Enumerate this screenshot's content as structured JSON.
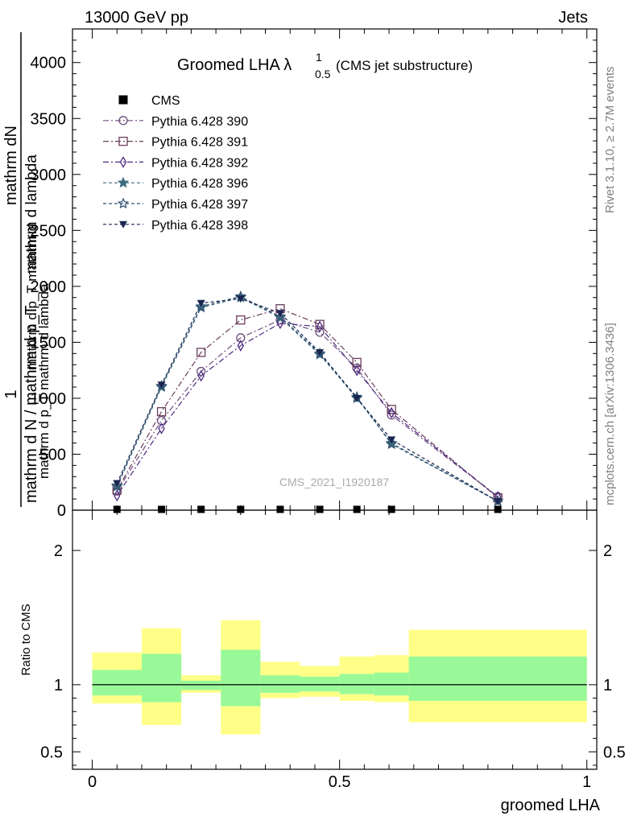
{
  "header": {
    "beam": "13000 GeV pp",
    "process": "Jets"
  },
  "title": {
    "main": "Groomed LHA λ",
    "superscript": "1",
    "subscript": "0.5",
    "suffix": "(CMS jet substructure)"
  },
  "side_labels": {
    "rivet": "Rivet 3.1.10, ≥ 2.7M events",
    "mcplots": "mcplots.cern.ch [arXiv:1306.3436]"
  },
  "watermark": "CMS_2021_I1920187",
  "main_ylabel": {
    "one": "1",
    "den": "mathrm d N / mathrm d p_T",
    "lbl1": "mathrm d lambda",
    "lbl2": "mathrm d p_T mathrm d lambda",
    "lbl3": "mathrm dN",
    "lbl4": "mathrm d p_T mathrm d"
  },
  "ratio_ylabel": "Ratio to CMS",
  "xlabel": "groomed LHA",
  "colors": {
    "s390": "#6e4f7f",
    "s391": "#6a3d5c",
    "s392": "#4b2a80",
    "s396": "#3f6d80",
    "s397": "#2f4f6f",
    "s398": "#1a2550",
    "band_inner": "#99f999",
    "band_outer": "#ffff88"
  },
  "chart_data": [
    {
      "type": "line",
      "panel": "main",
      "xlim": [
        -0.04,
        1.02
      ],
      "ylim": [
        0,
        4300
      ],
      "yticks": [
        0,
        500,
        1000,
        1500,
        2000,
        2500,
        3000,
        3500,
        4000
      ],
      "yticklabels": [
        "0",
        "500",
        "1000",
        "1500",
        "2000",
        "2500",
        "3000",
        "3500",
        "4000"
      ],
      "legend_position": "top-left",
      "x": [
        0.05,
        0.14,
        0.22,
        0.3,
        0.38,
        0.46,
        0.535,
        0.605,
        0.82
      ],
      "series": [
        {
          "name": "CMS",
          "marker": "square",
          "values": [
            0,
            0,
            0,
            0,
            0,
            0,
            0,
            0,
            0
          ]
        },
        {
          "name": "Pythia 6.428 390",
          "marker": "circle",
          "values": [
            170,
            800,
            1240,
            1540,
            1700,
            1590,
            1270,
            850,
            120
          ]
        },
        {
          "name": "Pythia 6.428 391",
          "marker": "square-open",
          "values": [
            180,
            880,
            1410,
            1700,
            1800,
            1660,
            1320,
            900,
            110
          ]
        },
        {
          "name": "Pythia 6.428 392",
          "marker": "diamond",
          "values": [
            130,
            730,
            1200,
            1470,
            1670,
            1640,
            1250,
            870,
            120
          ]
        },
        {
          "name": "Pythia 6.428 396",
          "marker": "star-filled",
          "values": [
            210,
            1100,
            1810,
            1900,
            1720,
            1390,
            1000,
            600,
            80
          ]
        },
        {
          "name": "Pythia 6.428 397",
          "marker": "star-open",
          "values": [
            220,
            1110,
            1820,
            1910,
            1730,
            1400,
            1010,
            590,
            80
          ]
        },
        {
          "name": "Pythia 6.428 398",
          "marker": "triangle-down",
          "values": [
            240,
            1120,
            1850,
            1890,
            1760,
            1410,
            1000,
            630,
            80
          ]
        }
      ]
    },
    {
      "type": "area",
      "panel": "ratio",
      "xlim": [
        -0.04,
        1.02
      ],
      "ylim": [
        0.37,
        2.3
      ],
      "yticks": [
        0.5,
        1,
        2
      ],
      "yticklabels": [
        "0.5",
        "1",
        "2"
      ],
      "xticks": [
        0,
        0.5,
        1
      ],
      "xticklabels": [
        "0",
        "0.5",
        "1"
      ],
      "bins": [
        {
          "x": [
            0.0,
            0.1
          ],
          "inner": [
            0.92,
            1.11
          ],
          "outer": [
            0.86,
            1.24
          ]
        },
        {
          "x": [
            0.1,
            0.18
          ],
          "inner": [
            0.87,
            1.23
          ],
          "outer": [
            0.7,
            1.42
          ]
        },
        {
          "x": [
            0.18,
            0.26
          ],
          "inner": [
            0.96,
            1.03
          ],
          "outer": [
            0.94,
            1.07
          ]
        },
        {
          "x": [
            0.26,
            0.34
          ],
          "inner": [
            0.84,
            1.26
          ],
          "outer": [
            0.63,
            1.48
          ]
        },
        {
          "x": [
            0.34,
            0.42
          ],
          "inner": [
            0.94,
            1.07
          ],
          "outer": [
            0.9,
            1.17
          ]
        },
        {
          "x": [
            0.42,
            0.5
          ],
          "inner": [
            0.95,
            1.06
          ],
          "outer": [
            0.91,
            1.14
          ]
        },
        {
          "x": [
            0.5,
            0.57
          ],
          "inner": [
            0.93,
            1.08
          ],
          "outer": [
            0.88,
            1.21
          ]
        },
        {
          "x": [
            0.57,
            0.64
          ],
          "inner": [
            0.92,
            1.09
          ],
          "outer": [
            0.87,
            1.22
          ]
        },
        {
          "x": [
            0.64,
            1.0
          ],
          "inner": [
            0.88,
            1.21
          ],
          "outer": [
            0.72,
            1.41
          ]
        }
      ],
      "reference": 1
    }
  ]
}
